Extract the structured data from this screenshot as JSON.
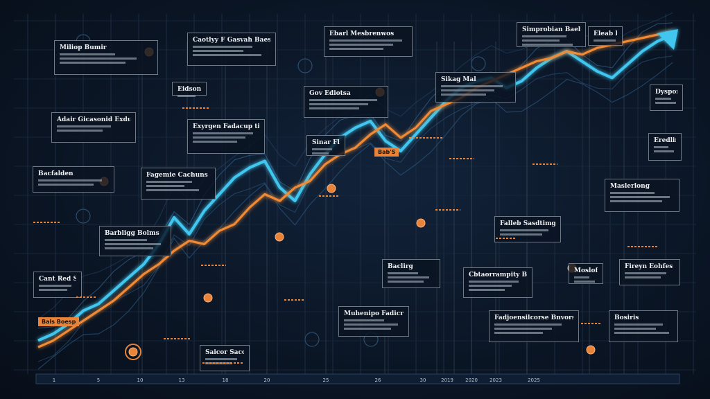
{
  "chart_data": {
    "type": "line",
    "title": "",
    "xlabel": "",
    "ylabel": "",
    "x": [
      0,
      1,
      2,
      3,
      4,
      5,
      6,
      7,
      8,
      9,
      10,
      11,
      12,
      13,
      14,
      15,
      16,
      17,
      18,
      19,
      20,
      21,
      22,
      23,
      24,
      25,
      26,
      27,
      28,
      29,
      30,
      31,
      32,
      33,
      34,
      35,
      36,
      37,
      38,
      39,
      40,
      41,
      42
    ],
    "ylim": [
      0,
      100
    ],
    "grid": true,
    "legend": "none",
    "series": [
      {
        "color": "#3fc6ef",
        "values": [
          8,
          10,
          13,
          17,
          19,
          23,
          27,
          31,
          37,
          45,
          40,
          47,
          52,
          57,
          60,
          62,
          54,
          50,
          58,
          64,
          69,
          72,
          74,
          68,
          65,
          70,
          75,
          80,
          84,
          86,
          87,
          84,
          86,
          90,
          93,
          95,
          92,
          89,
          87,
          91,
          95,
          98,
          100
        ]
      },
      {
        "color": "#f08a34",
        "values": [
          6,
          8,
          11,
          14,
          17,
          20,
          24,
          28,
          31,
          35,
          38,
          37,
          41,
          43,
          48,
          52,
          50,
          54,
          56,
          61,
          64,
          66,
          70,
          73,
          69,
          72,
          77,
          79,
          81,
          84,
          86,
          88,
          90,
          92,
          93,
          95,
          94,
          96,
          97,
          98,
          99,
          100,
          101
        ]
      }
    ],
    "x_ticks": [
      "1",
      "5",
      "10",
      "13",
      "18",
      "20",
      "25",
      "26",
      "30",
      "2019",
      "2020",
      "2023",
      "2025"
    ],
    "callouts": [
      {
        "title": "Miliop Bumir"
      },
      {
        "title": "Caotlyy F Gasvah Baestcotiv"
      },
      {
        "title": "Ebarl Mesbrenwos"
      },
      {
        "title": "Simprobian Baebor"
      },
      {
        "title": "Eleab Bulol"
      },
      {
        "title": "Eidsoniir"
      },
      {
        "title": "Gov Ediotsa"
      },
      {
        "title": "Adair Gicasonid Exdutor"
      },
      {
        "title": "Exyrgen Fadacup timds"
      },
      {
        "title": "Sinar Flabbl"
      },
      {
        "title": "Bacfalden"
      },
      {
        "title": "Fagemie Cachuns"
      },
      {
        "title": "Sikag Mal"
      },
      {
        "title": "Dysporimog"
      },
      {
        "title": "Falleb Sasdtimgln"
      },
      {
        "title": "Maslerlong"
      },
      {
        "title": "Cant Red Sipgirtor"
      },
      {
        "title": "Barbligg Bolms"
      },
      {
        "title": "Cbtaorrampity Bewotes"
      },
      {
        "title": "Muhenipo Fadicr Fadd Ekoiz"
      },
      {
        "title": "Fadjoensilcorse Bnvors"
      },
      {
        "title": "Eredlimg"
      },
      {
        "title": "Fireyn Eohfes Gfay"
      },
      {
        "title": "Moslofest"
      },
      {
        "title": "Bosiris"
      },
      {
        "title": "Baclirg"
      },
      {
        "title": "Saicor Sacota"
      }
    ],
    "tags": [
      "Bab'S",
      "Bals Boesp"
    ]
  }
}
